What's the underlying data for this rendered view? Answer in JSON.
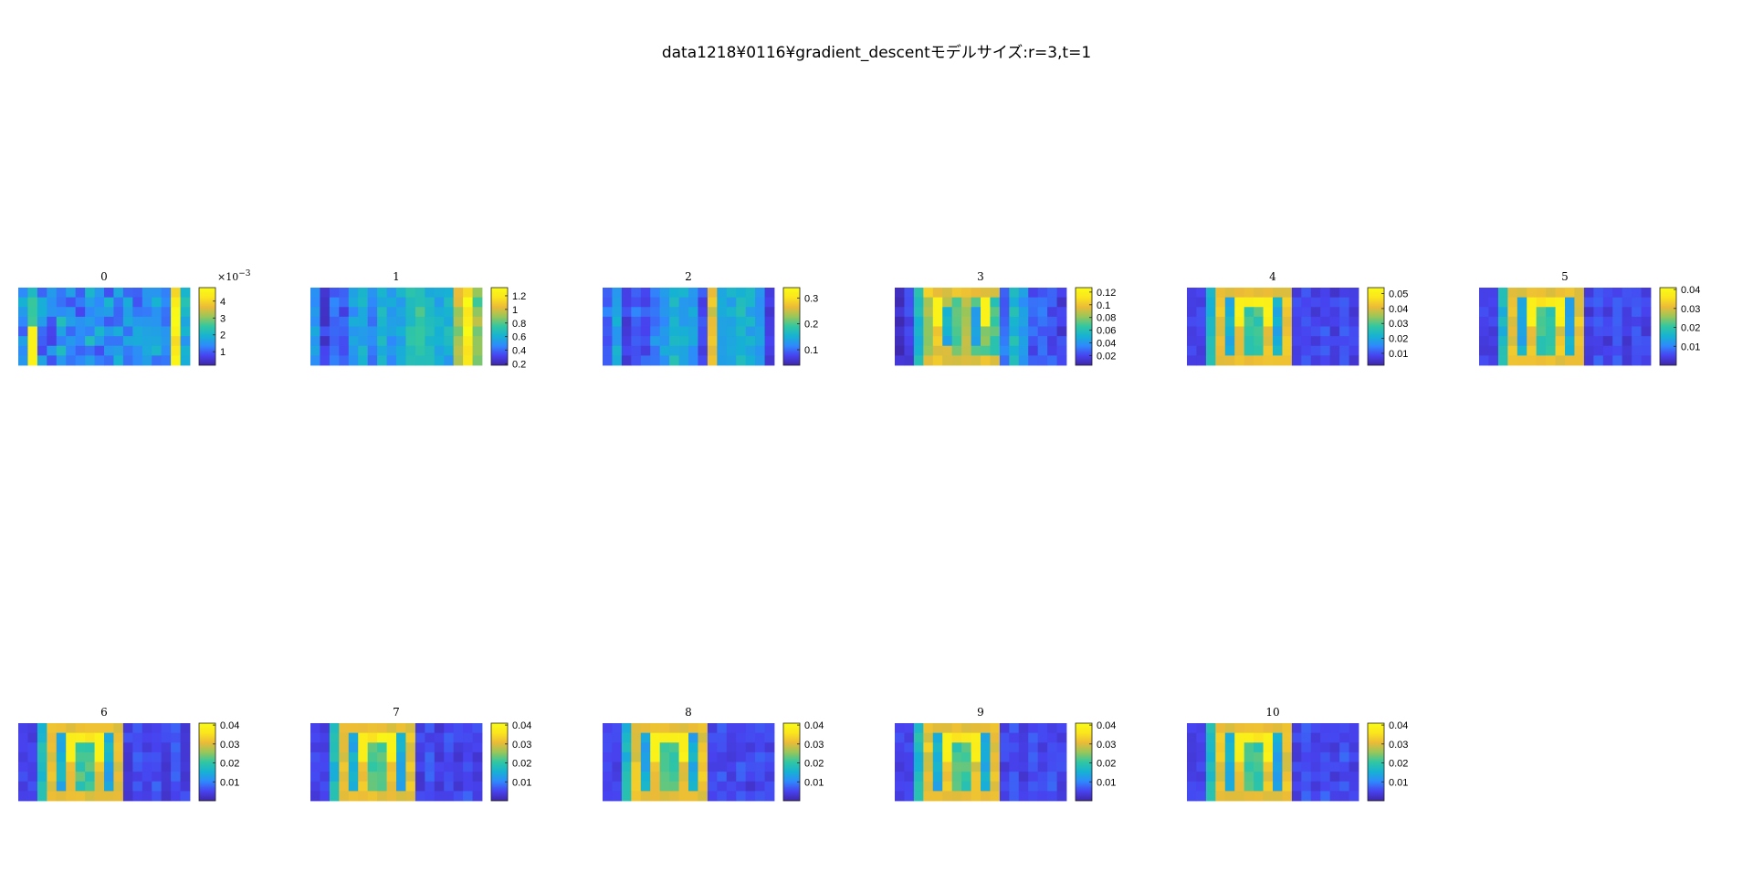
{
  "figure": {
    "title": "data1218¥0116¥gradient_descentモデルサイズ:r=3,t=1"
  },
  "colormap": [
    "#3e26a8",
    "#4743f0",
    "#2f89fc",
    "#16b2d3",
    "#31c7a2",
    "#98c65a",
    "#ebbb37",
    "#fbe51d",
    "#f9fb15"
  ],
  "chart_data": [
    {
      "type": "heatmap",
      "title": "0",
      "rows": 8,
      "cols": 18,
      "clim": [
        0.0002,
        0.0048
      ],
      "colorbar_ticks": [
        "1",
        "2",
        "3",
        "4"
      ],
      "colorbar_tick_values": [
        0.001,
        0.002,
        0.003,
        0.004
      ],
      "colorbar_multiplier": "×10",
      "colorbar_exponent": "−3"
    },
    {
      "type": "heatmap",
      "title": "1",
      "rows": 8,
      "cols": 18,
      "clim": [
        0.18,
        1.32
      ],
      "colorbar_ticks": [
        "0.2",
        "0.4",
        "0.6",
        "0.8",
        "1",
        "1.2"
      ],
      "colorbar_tick_values": [
        0.2,
        0.4,
        0.6,
        0.8,
        1.0,
        1.2
      ]
    },
    {
      "type": "heatmap",
      "title": "2",
      "rows": 8,
      "cols": 18,
      "clim": [
        0.04,
        0.34
      ],
      "colorbar_ticks": [
        "0.1",
        "0.2",
        "0.3"
      ],
      "colorbar_tick_values": [
        0.1,
        0.2,
        0.3
      ]
    },
    {
      "type": "heatmap",
      "title": "3",
      "rows": 8,
      "cols": 18,
      "clim": [
        0.005,
        0.127
      ],
      "colorbar_ticks": [
        "0.02",
        "0.04",
        "0.06",
        "0.08",
        "0.1",
        "0.12"
      ],
      "colorbar_tick_values": [
        0.02,
        0.04,
        0.06,
        0.08,
        0.1,
        0.12
      ]
    },
    {
      "type": "heatmap",
      "title": "4",
      "rows": 8,
      "cols": 18,
      "clim": [
        0.002,
        0.054
      ],
      "colorbar_ticks": [
        "0.01",
        "0.02",
        "0.03",
        "0.04",
        "0.05"
      ],
      "colorbar_tick_values": [
        0.01,
        0.02,
        0.03,
        0.04,
        0.05
      ]
    },
    {
      "type": "heatmap",
      "title": "5",
      "rows": 8,
      "cols": 18,
      "clim": [
        0.0,
        0.041
      ],
      "colorbar_ticks": [
        "0.01",
        "0.02",
        "0.03",
        "0.04"
      ],
      "colorbar_tick_values": [
        0.01,
        0.02,
        0.03,
        0.04
      ]
    },
    {
      "type": "heatmap",
      "title": "6",
      "rows": 8,
      "cols": 18,
      "clim": [
        0.0,
        0.041
      ],
      "colorbar_ticks": [
        "0.01",
        "0.02",
        "0.03",
        "0.04"
      ],
      "colorbar_tick_values": [
        0.01,
        0.02,
        0.03,
        0.04
      ]
    },
    {
      "type": "heatmap",
      "title": "7",
      "rows": 8,
      "cols": 18,
      "clim": [
        0.0,
        0.041
      ],
      "colorbar_ticks": [
        "0.01",
        "0.02",
        "0.03",
        "0.04"
      ],
      "colorbar_tick_values": [
        0.01,
        0.02,
        0.03,
        0.04
      ]
    },
    {
      "type": "heatmap",
      "title": "8",
      "rows": 8,
      "cols": 18,
      "clim": [
        0.0,
        0.041
      ],
      "colorbar_ticks": [
        "0.01",
        "0.02",
        "0.03",
        "0.04"
      ],
      "colorbar_tick_values": [
        0.01,
        0.02,
        0.03,
        0.04
      ]
    },
    {
      "type": "heatmap",
      "title": "9",
      "rows": 8,
      "cols": 18,
      "clim": [
        0.0,
        0.041
      ],
      "colorbar_ticks": [
        "0.01",
        "0.02",
        "0.03",
        "0.04"
      ],
      "colorbar_tick_values": [
        0.01,
        0.02,
        0.03,
        0.04
      ]
    },
    {
      "type": "heatmap",
      "title": "10",
      "rows": 8,
      "cols": 18,
      "clim": [
        0.0,
        0.041
      ],
      "colorbar_ticks": [
        "0.01",
        "0.02",
        "0.03",
        "0.04"
      ],
      "colorbar_tick_values": [
        0.01,
        0.02,
        0.03,
        0.04
      ]
    }
  ]
}
